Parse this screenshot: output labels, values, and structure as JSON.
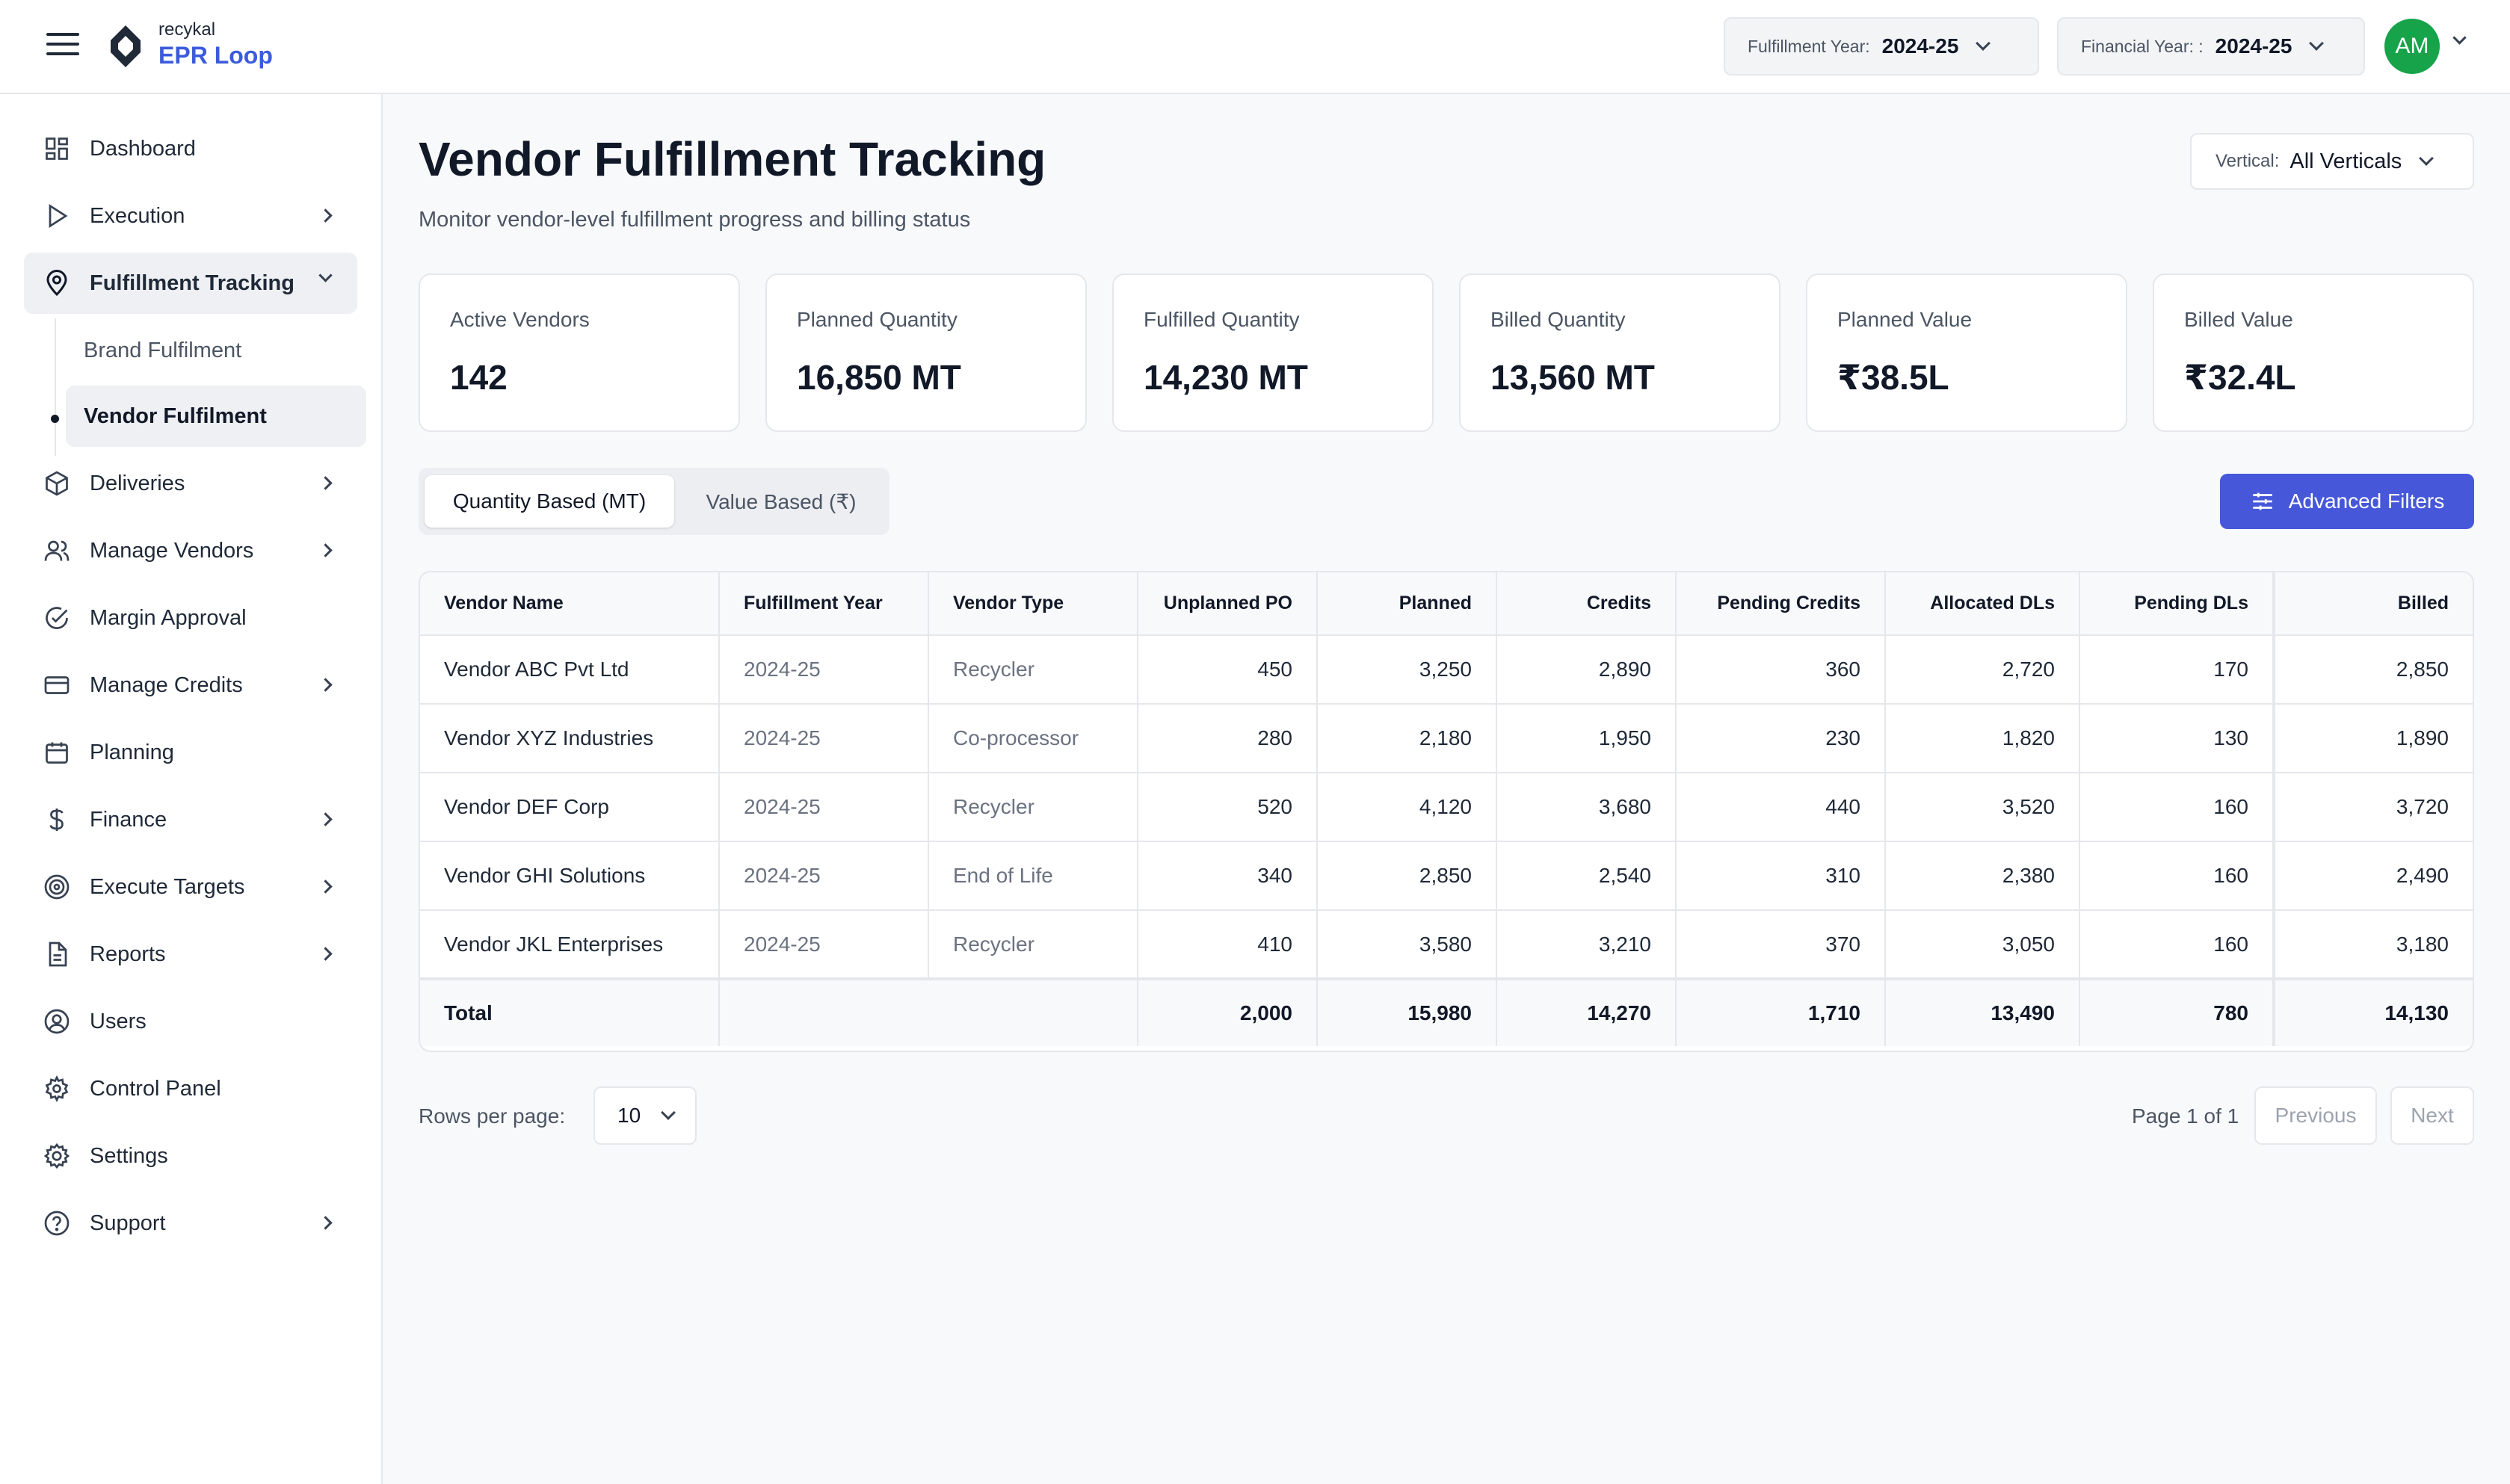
{
  "brand": {
    "small": "recykal",
    "big": "EPR Loop"
  },
  "header": {
    "fulfillment_year": {
      "label": "Fulfillment Year:",
      "value": "2024-25"
    },
    "financial_year": {
      "label": "Financial Year: :",
      "value": "2024-25"
    },
    "avatar_initials": "AM"
  },
  "sidebar": {
    "items": [
      {
        "label": "Dashboard",
        "icon": "grid-icon"
      },
      {
        "label": "Execution",
        "icon": "play-icon"
      },
      {
        "label": "Fulfillment Tracking",
        "icon": "location-pin-icon"
      },
      {
        "label": "Deliveries",
        "icon": "box-icon"
      },
      {
        "label": "Manage Vendors",
        "icon": "users-icon"
      },
      {
        "label": "Margin Approval",
        "icon": "check-circle-icon"
      },
      {
        "label": "Manage Credits",
        "icon": "credit-card-icon"
      },
      {
        "label": "Planning",
        "icon": "calendar-icon"
      },
      {
        "label": "Finance",
        "icon": "dollar-icon"
      },
      {
        "label": "Execute Targets",
        "icon": "target-icon"
      },
      {
        "label": "Reports",
        "icon": "document-icon"
      },
      {
        "label": "Users",
        "icon": "user-circle-icon"
      },
      {
        "label": "Control Panel",
        "icon": "gear-icon"
      },
      {
        "label": "Settings",
        "icon": "settings-icon"
      },
      {
        "label": "Support",
        "icon": "help-icon"
      }
    ],
    "sub_items": [
      {
        "label": "Brand Fulfilment"
      },
      {
        "label": "Vendor Fulfilment"
      }
    ]
  },
  "page": {
    "title": "Vendor Fulfillment Tracking",
    "subtitle": "Monitor vendor-level fulfillment progress and billing status",
    "vertical": {
      "label": "Vertical:",
      "value": "All Verticals"
    }
  },
  "stats": [
    {
      "label": "Active Vendors",
      "value": "142"
    },
    {
      "label": "Planned Quantity",
      "value": "16,850 MT"
    },
    {
      "label": "Fulfilled Quantity",
      "value": "14,230 MT"
    },
    {
      "label": "Billed Quantity",
      "value": "13,560 MT"
    },
    {
      "label": "Planned Value",
      "value": "₹38.5L"
    },
    {
      "label": "Billed Value",
      "value": "₹32.4L"
    }
  ],
  "toggle": {
    "quantity": "Quantity Based (MT)",
    "value": "Value Based (₹)"
  },
  "advanced_filters": "Advanced Filters",
  "table": {
    "headers": [
      "Vendor Name",
      "Fulfillment Year",
      "Vendor Type",
      "Unplanned PO",
      "Planned",
      "Credits",
      "Pending Credits",
      "Allocated DLs",
      "Pending DLs",
      "Billed"
    ],
    "rows": [
      [
        "Vendor ABC Pvt Ltd",
        "2024-25",
        "Recycler",
        "450",
        "3,250",
        "2,890",
        "360",
        "2,720",
        "170",
        "2,850"
      ],
      [
        "Vendor XYZ Industries",
        "2024-25",
        "Co-processor",
        "280",
        "2,180",
        "1,950",
        "230",
        "1,820",
        "130",
        "1,890"
      ],
      [
        "Vendor DEF Corp",
        "2024-25",
        "Recycler",
        "520",
        "4,120",
        "3,680",
        "440",
        "3,520",
        "160",
        "3,720"
      ],
      [
        "Vendor GHI Solutions",
        "2024-25",
        "End of Life",
        "340",
        "2,850",
        "2,540",
        "310",
        "2,380",
        "160",
        "2,490"
      ],
      [
        "Vendor JKL Enterprises",
        "2024-25",
        "Recycler",
        "410",
        "3,580",
        "3,210",
        "370",
        "3,050",
        "160",
        "3,180"
      ]
    ],
    "total": [
      "Total",
      "",
      "",
      "2,000",
      "15,980",
      "14,270",
      "1,710",
      "13,490",
      "780",
      "14,130"
    ]
  },
  "pagination": {
    "rows_label": "Rows per page:",
    "rows_value": "10",
    "page_info": "Page 1 of 1",
    "previous": "Previous",
    "next": "Next"
  },
  "colors": {
    "accent": "#4658d9",
    "brand": "#3b5bdb",
    "avatar": "#16a34a"
  }
}
